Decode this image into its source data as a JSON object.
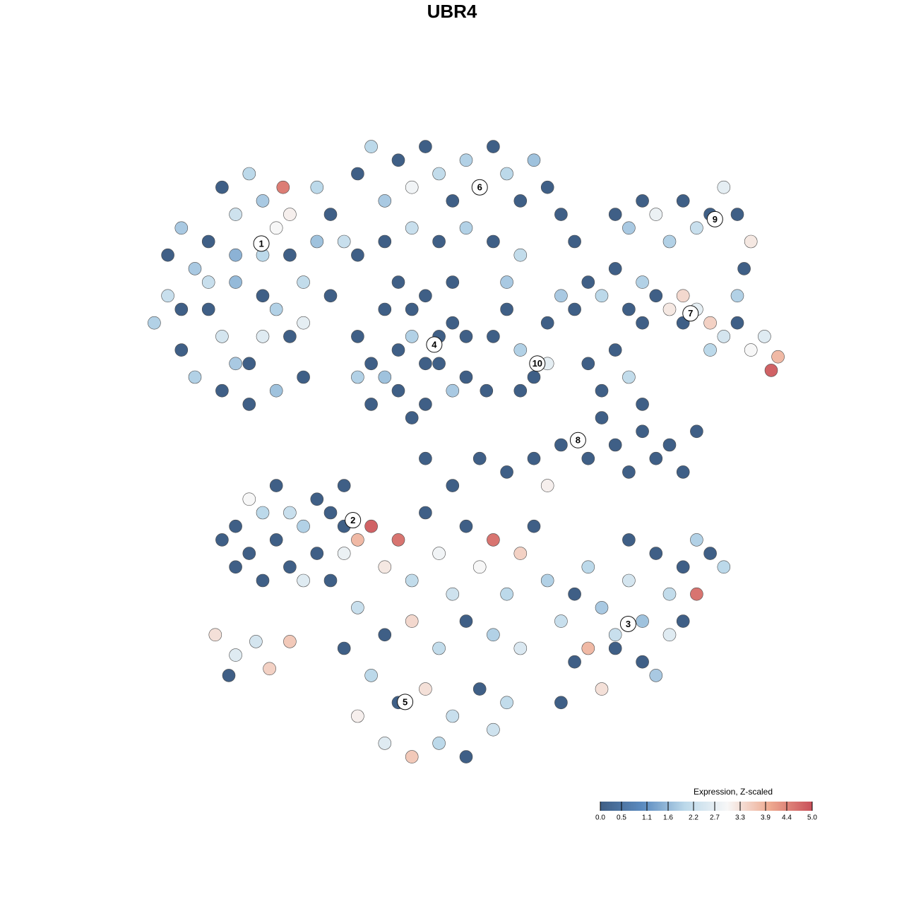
{
  "chart_data": {
    "type": "scatter",
    "title": "UBR4",
    "xlim": [
      -50,
      50
    ],
    "ylim": [
      -50,
      50
    ],
    "x": [
      -46,
      -44,
      -42,
      -40,
      -38,
      -36,
      -34,
      -32,
      -30,
      -28,
      -26,
      -24,
      -22,
      -38,
      -34,
      -30,
      -26,
      -22,
      -36,
      -32,
      -28,
      -24,
      -40,
      -44,
      -42,
      -30,
      -26,
      -20,
      -18,
      -34,
      -30,
      -28,
      -36,
      -32,
      -27,
      -20,
      -38,
      -42,
      -24,
      -34,
      -16,
      -14,
      -12,
      -10,
      -8,
      -6,
      -4,
      -2,
      0,
      2,
      4,
      6,
      8,
      10,
      12,
      14,
      16,
      -12,
      -8,
      -4,
      0,
      4,
      8,
      -16,
      6,
      -16,
      -14,
      -12,
      -10,
      -8,
      -6,
      -4,
      -2,
      0,
      -14,
      -10,
      -6,
      -2,
      -12,
      -8,
      -4,
      0,
      -10,
      -6,
      -16,
      -2,
      -8,
      4,
      6,
      8,
      10,
      12,
      8,
      12,
      14,
      16,
      3,
      18,
      20,
      22,
      24,
      26,
      28,
      30,
      32,
      34,
      36,
      38,
      40,
      42,
      44,
      46,
      45,
      36,
      32,
      26,
      40,
      22,
      24,
      26,
      28,
      30,
      32,
      34,
      36,
      38,
      40,
      42,
      41,
      18,
      20,
      22,
      24,
      20,
      22,
      26,
      28,
      30,
      32,
      34,
      24,
      26,
      18,
      14,
      10,
      6,
      2,
      -2,
      12,
      -34,
      -32,
      -30,
      -28,
      -26,
      -24,
      -22,
      -20,
      -18,
      -16,
      -34,
      -30,
      -26,
      -22,
      -28,
      -32,
      -24,
      -36,
      -20,
      -18,
      -37,
      -34,
      -31,
      -29,
      -26,
      -35,
      12,
      14,
      16,
      18,
      20,
      22,
      24,
      26,
      28,
      30,
      32,
      34,
      36,
      30,
      26,
      20,
      14,
      34,
      24,
      28,
      18,
      22,
      32,
      16,
      38,
      -18,
      -14,
      -12,
      -10,
      -8,
      -6,
      -4,
      -2,
      0,
      2,
      4,
      6,
      8,
      10,
      -16,
      -12,
      -8,
      -4,
      0,
      4,
      8,
      -14,
      -10,
      -6,
      -2,
      2,
      6,
      -12,
      -8,
      -4,
      0,
      4,
      -16,
      -18,
      -6
    ],
    "y": [
      18,
      22,
      14,
      26,
      20,
      16,
      24,
      12,
      28,
      20,
      16,
      24,
      30,
      30,
      34,
      36,
      34,
      38,
      8,
      6,
      8,
      10,
      10,
      28,
      32,
      16,
      28,
      22,
      30,
      28,
      22,
      32,
      38,
      40,
      38,
      34,
      24,
      20,
      18,
      12,
      40,
      44,
      36,
      42,
      38,
      44,
      40,
      36,
      42,
      38,
      44,
      40,
      36,
      42,
      38,
      34,
      30,
      30,
      32,
      30,
      32,
      30,
      28,
      28,
      24,
      16,
      12,
      20,
      8,
      16,
      22,
      12,
      18,
      10,
      6,
      14,
      6,
      8,
      10,
      20,
      16,
      16,
      24,
      12,
      10,
      24,
      4,
      16,
      20,
      14,
      10,
      12,
      8,
      18,
      22,
      20,
      8,
      24,
      22,
      26,
      20,
      24,
      22,
      20,
      18,
      20,
      18,
      16,
      18,
      14,
      16,
      13,
      11,
      14,
      22,
      18,
      22,
      34,
      32,
      36,
      34,
      30,
      36,
      32,
      34,
      38,
      34,
      30,
      26,
      12,
      8,
      14,
      10,
      4,
      0,
      2,
      -2,
      0,
      -4,
      2,
      -4,
      6,
      -2,
      0,
      -2,
      -4,
      -2,
      -6,
      -6,
      -12,
      -16,
      -10,
      -14,
      -18,
      -12,
      -8,
      -10,
      -6,
      -14,
      -18,
      -20,
      -10,
      -16,
      -6,
      -8,
      -20,
      -14,
      -20,
      -12,
      -28,
      -31,
      -29,
      -33,
      -29,
      -34,
      -20,
      -26,
      -32,
      -18,
      -24,
      -30,
      -20,
      -26,
      -16,
      -22,
      -18,
      -14,
      -16,
      -28,
      -32,
      -36,
      -38,
      -22,
      -14,
      -34,
      -30,
      -28,
      -26,
      -22,
      -18,
      -16,
      -12,
      -18,
      -14,
      -20,
      -10,
      -16,
      -22,
      -12,
      -18,
      -14,
      -22,
      -16,
      -12,
      -24,
      -28,
      -26,
      -30,
      -26,
      -28,
      -30,
      -34,
      -38,
      -36,
      -40,
      -36,
      -38,
      -44,
      -46,
      -44,
      -46,
      -42,
      -40,
      -30,
      -2
    ],
    "values": [
      1.9,
      2.2,
      0,
      1.8,
      0,
      2.4,
      1.6,
      0,
      2.0,
      1.9,
      0,
      2.1,
      1.7,
      0,
      2.3,
      1.8,
      3.1,
      2.0,
      0,
      0,
      1.7,
      0,
      1.9,
      0,
      1.8,
      2.6,
      0,
      0,
      2.2,
      1.5,
      0,
      3.0,
      0,
      2.0,
      4.5,
      0,
      2.2,
      0,
      2.7,
      1.8,
      0,
      2.0,
      1.8,
      0,
      2.9,
      0,
      2.1,
      0,
      1.9,
      2.8,
      0,
      2.0,
      0,
      1.7,
      0,
      0,
      0,
      0,
      2.2,
      0,
      1.9,
      0,
      2.1,
      0,
      1.8,
      0,
      0,
      0,
      0,
      1.9,
      0,
      0,
      0,
      0,
      0,
      0,
      0,
      1.8,
      1.7,
      0,
      0,
      0,
      0,
      0,
      1.9,
      0,
      0,
      0,
      0,
      1.9,
      0,
      2.7,
      0,
      0,
      1.8,
      0,
      0,
      0,
      2.0,
      0,
      0,
      1.9,
      0,
      3.2,
      0,
      2.7,
      3.5,
      2.4,
      0,
      3.0,
      2.6,
      3.8,
      4.8,
      2.0,
      3.4,
      0,
      1.9,
      0,
      1.8,
      0,
      2.8,
      1.9,
      0,
      2.2,
      0,
      2.7,
      0,
      3.2,
      0,
      0,
      0,
      0,
      2.1,
      0,
      0,
      0,
      0,
      0,
      0,
      0,
      0,
      0,
      0,
      0,
      0,
      0,
      0,
      0,
      3.1,
      0,
      0,
      2.0,
      0,
      0,
      1.9,
      0,
      0,
      0,
      3.8,
      0,
      0,
      2.2,
      0,
      0,
      3.0,
      2.6,
      0,
      0,
      0,
      3.3,
      2.6,
      2.4,
      3.5,
      3.6,
      0,
      1.9,
      2.2,
      0,
      2.0,
      1.8,
      0,
      2.4,
      1.7,
      0,
      2.1,
      0,
      1.9,
      0,
      2.6,
      0,
      3.3,
      0,
      4.6,
      0,
      1.8,
      3.8,
      2.2,
      0,
      0,
      2.0,
      2.8,
      4.8,
      3.2,
      4.6,
      2.1,
      0,
      2.9,
      2.3,
      0,
      3.0,
      4.6,
      2.0,
      3.5,
      0,
      2.2,
      0,
      3.4,
      2.1,
      0,
      1.9,
      2.5,
      2.0,
      0,
      3.3,
      2.2,
      0,
      2.1,
      2.6,
      3.6,
      2.0,
      0,
      2.3,
      3.1,
      0,
      0
    ],
    "annotations": [
      {
        "text": "1",
        "x": -30.2,
        "y": 29.7
      },
      {
        "text": "2",
        "x": -16.7,
        "y": -11.1
      },
      {
        "text": "3",
        "x": 23.9,
        "y": -26.4
      },
      {
        "text": "4",
        "x": -4.7,
        "y": 14.8
      },
      {
        "text": "5",
        "x": -9.0,
        "y": -37.9
      },
      {
        "text": "6",
        "x": 2.0,
        "y": 38.0
      },
      {
        "text": "7",
        "x": 33.1,
        "y": 19.4
      },
      {
        "text": "8",
        "x": 16.5,
        "y": 0.7
      },
      {
        "text": "9",
        "x": 36.7,
        "y": 33.3
      },
      {
        "text": "10",
        "x": 10.5,
        "y": 12.0
      }
    ],
    "colorbar": {
      "title": "Expression, Z-scaled",
      "clim": [
        0,
        5
      ],
      "colors": [
        "#3f5f86",
        "#5b8bc0",
        "#bcd9ea",
        "#f7f7f7",
        "#eeaa90",
        "#c9505a"
      ],
      "ticks": [
        {
          "value": 0,
          "label": "0.0"
        },
        0.5,
        1.1,
        1.6,
        2.2,
        2.7,
        3.3,
        3.9,
        4.4,
        {
          "value": 5,
          "label": "5.0"
        }
      ]
    }
  }
}
